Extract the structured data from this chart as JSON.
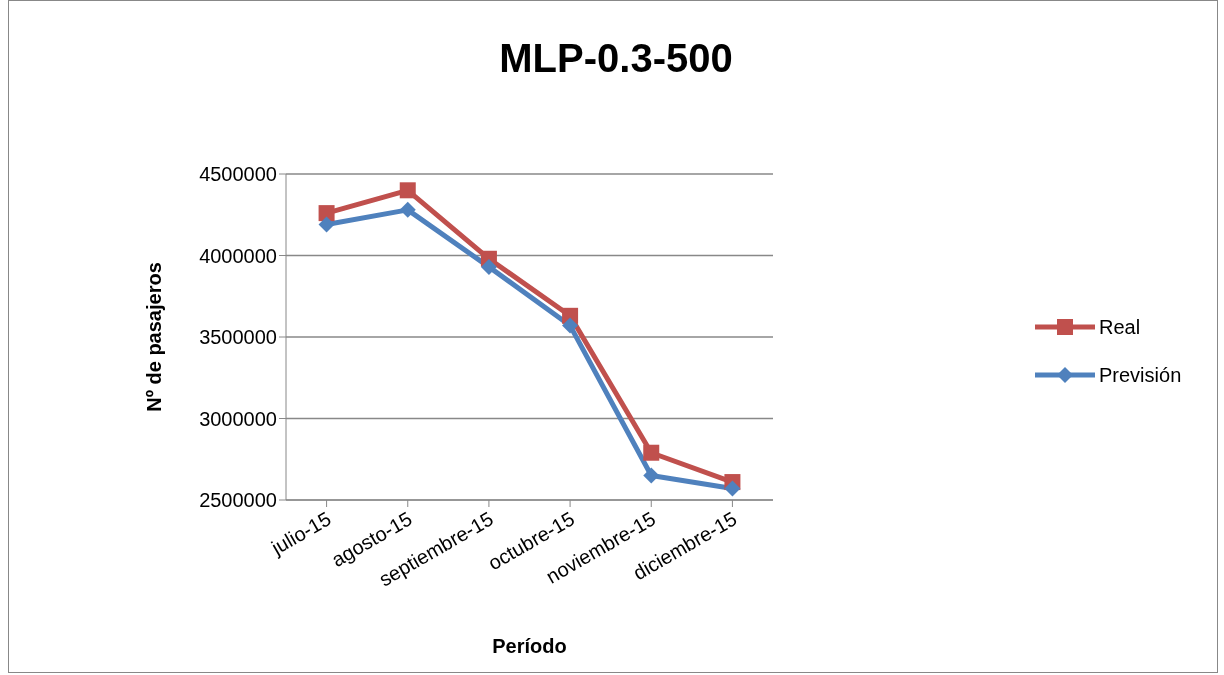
{
  "chart_data": {
    "type": "line",
    "title": "MLP-0.3-500",
    "xlabel": "Período",
    "ylabel": "Nº de pasajeros",
    "categories": [
      "julio-15",
      "agosto-15",
      "septiembre-15",
      "octubre-15",
      "noviembre-15",
      "diciembre-15"
    ],
    "series": [
      {
        "name": "Real",
        "color": "#c0504d",
        "marker": "square",
        "values": [
          4260000,
          4400000,
          3980000,
          3630000,
          2790000,
          2610000
        ]
      },
      {
        "name": "Previsión",
        "color": "#4f81bd",
        "marker": "diamond",
        "values": [
          4190000,
          4280000,
          3930000,
          3570000,
          2650000,
          2570000
        ]
      }
    ],
    "ylim": [
      2500000,
      4500000
    ],
    "yticks": [
      2500000,
      3000000,
      3500000,
      4000000,
      4500000
    ],
    "grid": "y",
    "legend": "right",
    "line_style": "solid"
  }
}
